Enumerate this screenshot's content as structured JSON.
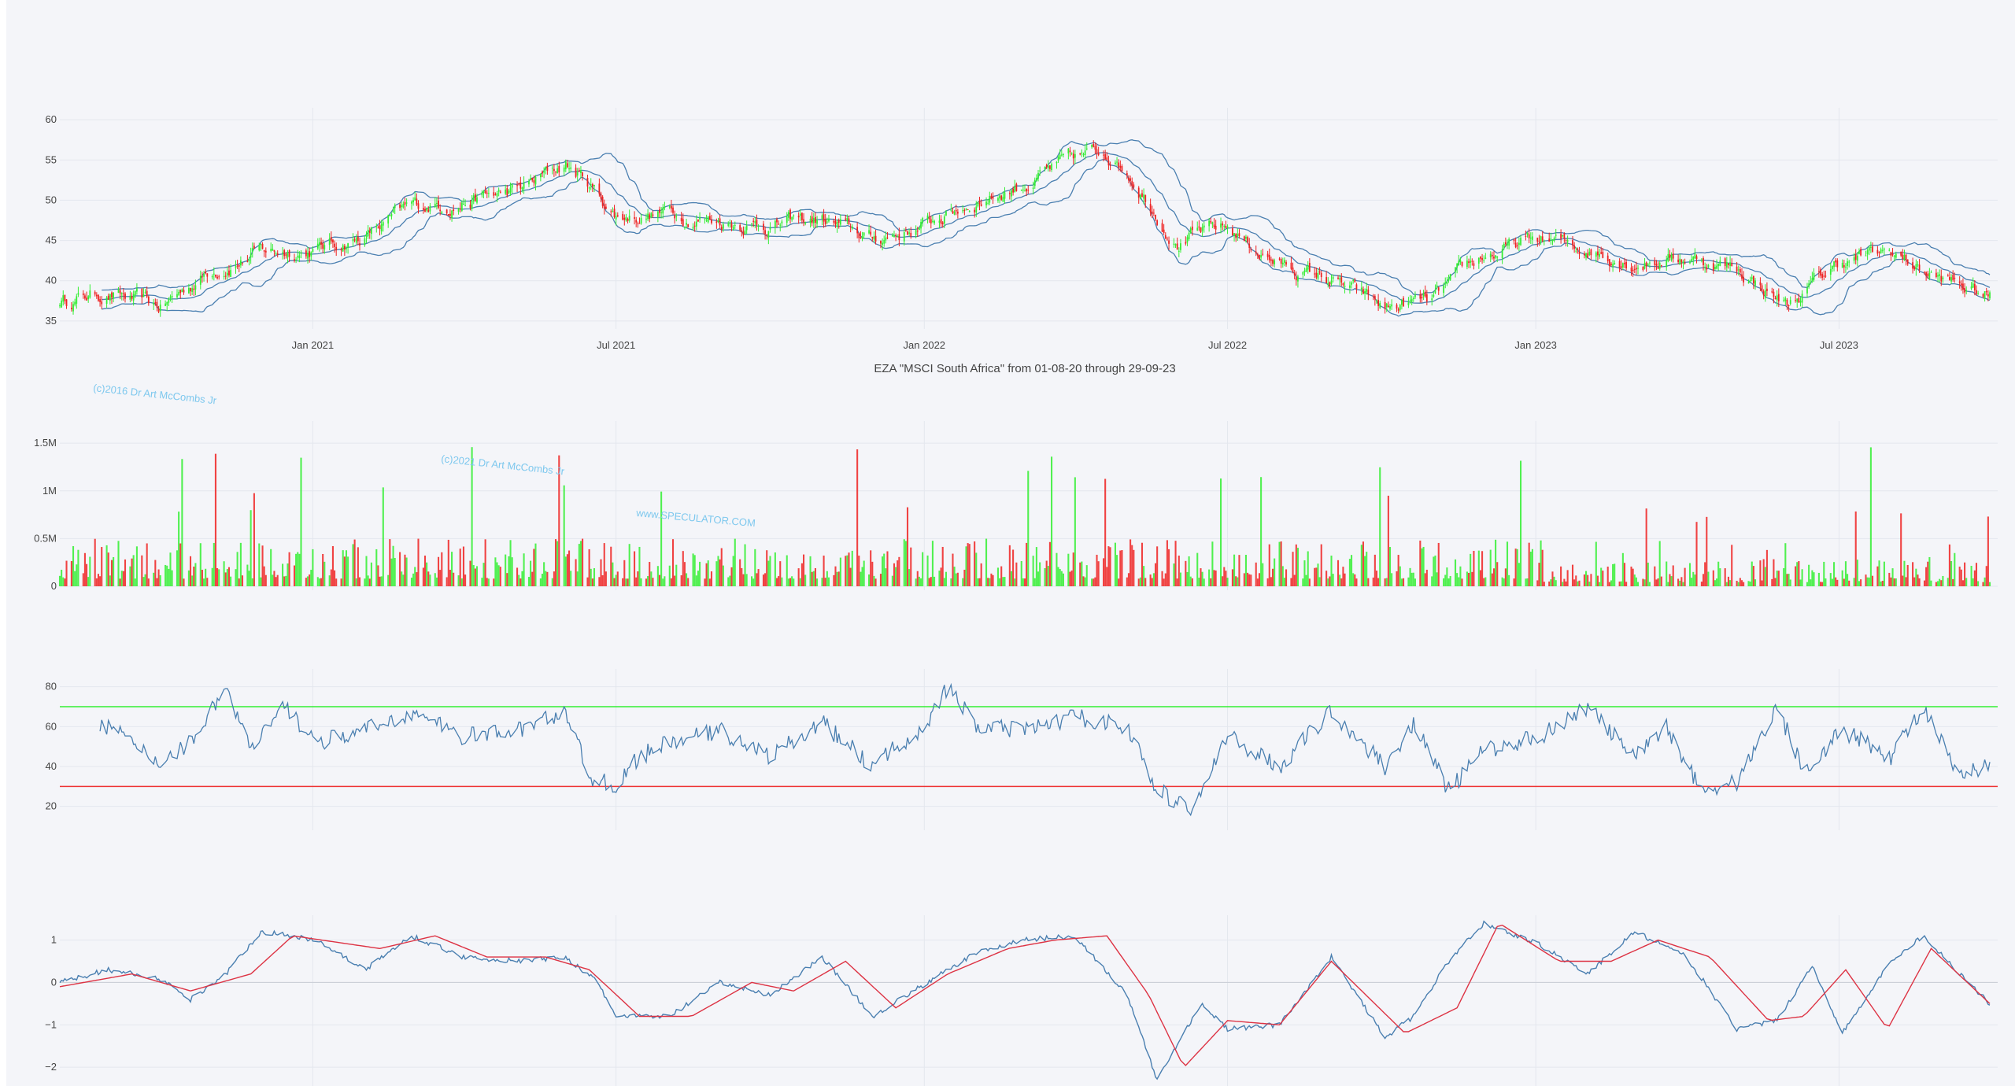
{
  "title": "EZA \"MSCI South Africa\" from 01-08-20 through 29-09-23",
  "watermarks": [
    "(c)2016 Dr Art McCombs Jr",
    "(c)2021 Dr Art McCombs Jr",
    "www.SPECULATOR.COM"
  ],
  "colors": {
    "background": "#f4f5f9",
    "grid": "#e4e7ee",
    "up": "#33ee33",
    "down": "#ee2222",
    "line": "#4a7fb0",
    "signal": "#dd3344",
    "overbought": "#33ee33",
    "oversold": "#ee3333",
    "watermark": "#7ec8ee"
  },
  "chart_data": [
    {
      "type": "candlestick",
      "panel": "price",
      "x_range": [
        "2020-08-03",
        "2023-09-29"
      ],
      "x_ticks": [
        "Jan 2021",
        "Jul 2021",
        "Jan 2022",
        "Jul 2022",
        "Jan 2023",
        "Jul 2023"
      ],
      "y_ticks": [
        35,
        40,
        45,
        50,
        55,
        60
      ],
      "ylim": [
        34.5,
        60.5
      ],
      "overlays": [
        "bollinger-upper",
        "bollinger-middle",
        "bollinger-lower"
      ],
      "close_series": {
        "dates": [
          "2020-08-03",
          "2020-09-01",
          "2020-10-01",
          "2020-11-02",
          "2020-12-01",
          "2021-01-04",
          "2021-02-01",
          "2021-03-01",
          "2021-04-01",
          "2021-05-03",
          "2021-06-01",
          "2021-06-15",
          "2021-07-01",
          "2021-08-02",
          "2021-09-01",
          "2021-10-01",
          "2021-11-01",
          "2021-12-01",
          "2022-01-03",
          "2022-02-01",
          "2022-03-01",
          "2022-04-01",
          "2022-04-20",
          "2022-05-02",
          "2022-06-01",
          "2022-07-01",
          "2022-08-01",
          "2022-09-01",
          "2022-10-03",
          "2022-11-01",
          "2022-12-01",
          "2023-01-03",
          "2023-02-01",
          "2023-03-01",
          "2023-04-03",
          "2023-05-01",
          "2023-06-01",
          "2023-07-03",
          "2023-08-01",
          "2023-09-01",
          "2023-09-29"
        ],
        "close": [
          37.5,
          38.5,
          36.5,
          41.5,
          43.5,
          44,
          45.5,
          49,
          50,
          51,
          54.5,
          52,
          48,
          48.5,
          47.5,
          47,
          47.5,
          45,
          47,
          50,
          52,
          55,
          56,
          54,
          45,
          46.5,
          42,
          40,
          36.5,
          37.5,
          43,
          45,
          44,
          42.5,
          43,
          41.5,
          37,
          42.5,
          43.5,
          40,
          38
        ]
      }
    },
    {
      "type": "bar",
      "panel": "volume",
      "y_ticks": [
        "0",
        "0.5M",
        "1M",
        "1.5M"
      ],
      "ylim": [
        0,
        1650000
      ]
    },
    {
      "type": "line",
      "panel": "rsi",
      "y_ticks": [
        20,
        40,
        60,
        80
      ],
      "ylim": [
        10,
        85
      ],
      "overbought": 70,
      "oversold": 30,
      "series": {
        "dates": [
          "2020-08-27",
          "2020-09-10",
          "2020-10-01",
          "2020-10-20",
          "2020-11-10",
          "2020-11-25",
          "2020-12-15",
          "2021-01-04",
          "2021-02-01",
          "2021-03-01",
          "2021-04-01",
          "2021-05-03",
          "2021-06-01",
          "2021-06-15",
          "2021-07-01",
          "2021-07-15",
          "2021-08-02",
          "2021-09-01",
          "2021-10-01",
          "2021-11-01",
          "2021-12-01",
          "2022-01-03",
          "2022-01-15",
          "2022-02-01",
          "2022-03-01",
          "2022-04-01",
          "2022-05-02",
          "2022-05-20",
          "2022-06-10",
          "2022-07-01",
          "2022-08-01",
          "2022-09-01",
          "2022-10-03",
          "2022-10-20",
          "2022-11-10",
          "2022-12-01",
          "2023-01-03",
          "2023-02-01",
          "2023-03-01",
          "2023-03-20",
          "2023-04-10",
          "2023-05-01",
          "2023-05-25",
          "2023-06-10",
          "2023-07-03",
          "2023-08-01",
          "2023-08-20",
          "2023-09-10",
          "2023-09-29"
        ],
        "values": [
          62,
          55,
          42,
          52,
          80,
          48,
          70,
          52,
          58,
          67,
          55,
          58,
          68,
          35,
          30,
          45,
          52,
          58,
          45,
          62,
          40,
          62,
          80,
          60,
          58,
          65,
          60,
          28,
          18,
          55,
          40,
          68,
          40,
          62,
          28,
          48,
          55,
          70,
          44,
          60,
          28,
          32,
          70,
          38,
          58,
          45,
          70,
          35,
          40
        ]
      }
    },
    {
      "type": "line",
      "panel": "oscillator",
      "y_ticks": [
        "−2",
        "−1",
        "0",
        "1"
      ],
      "ylim": [
        -2.35,
        1.4
      ],
      "series": [
        {
          "dates": [
            "2020-08-03",
            "2020-09-01",
            "2020-10-01",
            "2020-10-20",
            "2020-11-10",
            "2020-12-01",
            "2021-01-04",
            "2021-02-01",
            "2021-03-01",
            "2021-04-01",
            "2021-05-03",
            "2021-06-01",
            "2021-06-20",
            "2021-07-01",
            "2021-08-02",
            "2021-09-01",
            "2021-10-01",
            "2021-11-01",
            "2021-12-01",
            "2022-01-03",
            "2022-02-01",
            "2022-03-01",
            "2022-04-01",
            "2022-05-02",
            "2022-05-20",
            "2022-06-15",
            "2022-07-01",
            "2022-08-01",
            "2022-09-01",
            "2022-10-03",
            "2022-10-20",
            "2022-11-10",
            "2022-12-01",
            "2023-01-03",
            "2023-02-01",
            "2023-03-01",
            "2023-04-01",
            "2023-05-01",
            "2023-05-25",
            "2023-06-15",
            "2023-07-03",
            "2023-08-01",
            "2023-08-20",
            "2023-09-29"
          ],
          "values": [
            0,
            0.3,
            0.1,
            -0.4,
            0.2,
            1.2,
            1.0,
            0.3,
            1.1,
            0.6,
            0.5,
            0.6,
            0.0,
            -0.8,
            -0.8,
            0.0,
            -0.3,
            0.6,
            -0.8,
            0.0,
            0.7,
            1.0,
            1.1,
            -0.3,
            -2.3,
            -0.5,
            -1.1,
            -1.0,
            0.6,
            -1.3,
            -0.8,
            0.5,
            1.4,
            0.9,
            0.2,
            1.2,
            0.6,
            -1.1,
            -0.9,
            0.4,
            -1.2,
            0.5,
            1.1,
            -0.5
          ]
        },
        {
          "dates": [
            "2020-08-03",
            "2020-09-15",
            "2020-10-20",
            "2020-11-25",
            "2020-12-20",
            "2021-02-10",
            "2021-03-15",
            "2021-04-15",
            "2021-05-20",
            "2021-06-15",
            "2021-07-15",
            "2021-08-15",
            "2021-09-20",
            "2021-10-15",
            "2021-11-15",
            "2021-12-15",
            "2022-01-15",
            "2022-02-20",
            "2022-03-20",
            "2022-04-20",
            "2022-05-15",
            "2022-06-05",
            "2022-07-01",
            "2022-08-01",
            "2022-09-01",
            "2022-10-15",
            "2022-11-15",
            "2022-12-10",
            "2023-01-15",
            "2023-02-15",
            "2023-03-15",
            "2023-04-15",
            "2023-05-20",
            "2023-06-10",
            "2023-07-05",
            "2023-07-30",
            "2023-08-25",
            "2023-09-29"
          ],
          "values": [
            -0.1,
            0.2,
            -0.2,
            0.2,
            1.1,
            0.8,
            1.1,
            0.6,
            0.6,
            0.3,
            -0.8,
            -0.8,
            0.0,
            -0.2,
            0.5,
            -0.6,
            0.2,
            0.8,
            1.0,
            1.1,
            -0.3,
            -2.0,
            -0.9,
            -1.0,
            0.5,
            -1.2,
            -0.6,
            1.4,
            0.5,
            0.5,
            1.0,
            0.6,
            -0.9,
            -0.8,
            0.3,
            -1.1,
            0.8,
            -0.5
          ]
        }
      ]
    }
  ]
}
